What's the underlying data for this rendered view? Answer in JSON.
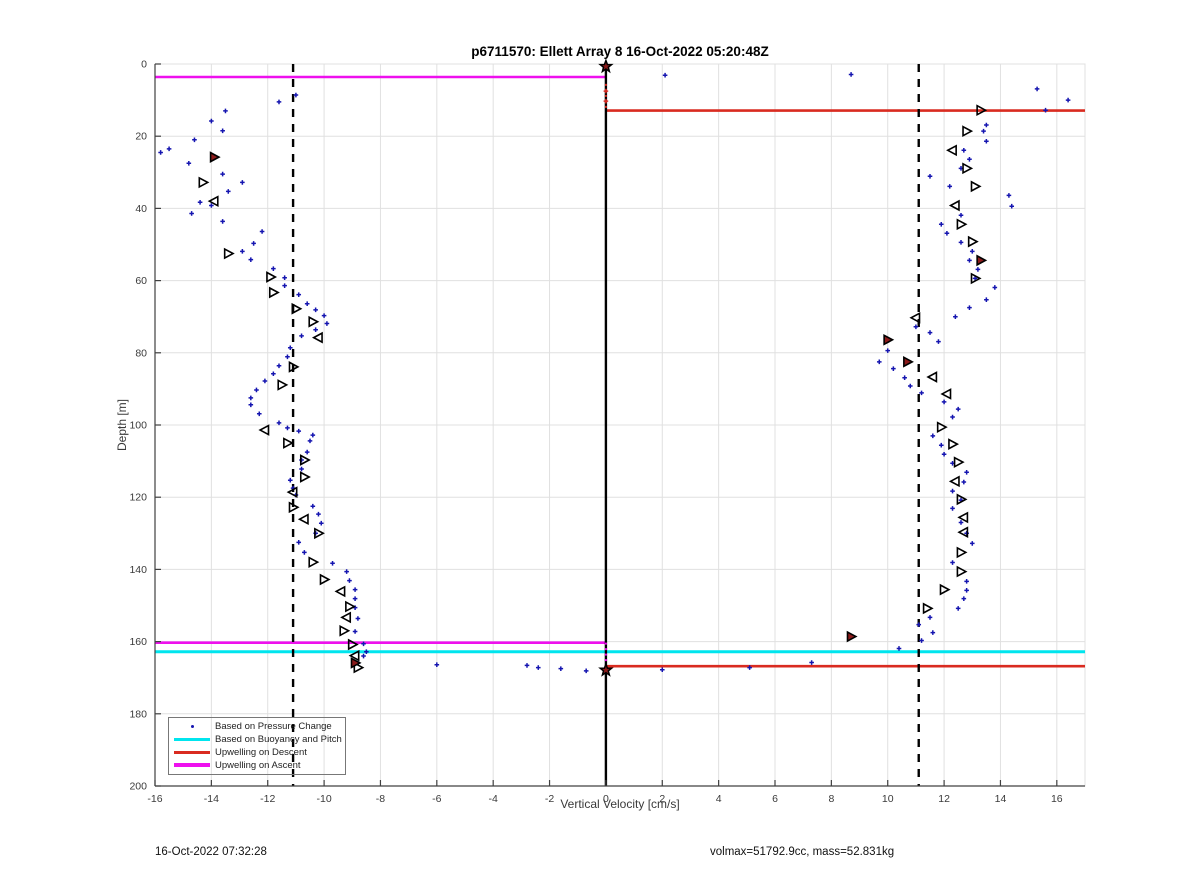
{
  "footer": {
    "left": "16-Oct-2022 07:32:28",
    "right": "volmax=51792.9cc, mass=52.831kg"
  },
  "chart_data": {
    "type": "scatter",
    "title": "p6711570: Ellett Array 8 16-Oct-2022 05:20:48Z",
    "xlabel": "Vertical Velocity [cm/s]",
    "ylabel": "Depth [m]",
    "xlim": [
      -16,
      17
    ],
    "ylim": [
      0,
      200
    ],
    "y_axis_reversed": true,
    "grid": true,
    "legend_position": "southwest",
    "x_ticks": [
      -16,
      -14,
      -12,
      -10,
      -8,
      -6,
      -4,
      -2,
      0,
      2,
      4,
      6,
      8,
      10,
      12,
      14,
      16
    ],
    "y_ticks": [
      0,
      20,
      40,
      60,
      80,
      100,
      120,
      140,
      160,
      180,
      200
    ],
    "colors": {
      "grid": "#e0e0e0",
      "axis": "#404040",
      "dots": "#1515b0",
      "triangle": "#000000",
      "triangle_flagged_fill": "#8b1a1a",
      "cyan": "#00e5ee",
      "red": "#d92b20",
      "magenta": "#ee10ee",
      "zero_line": "#000000",
      "dashed": "#000000"
    },
    "legend": [
      {
        "label": "Based on Pressure Change",
        "marker": "dot",
        "color": "#1515b0"
      },
      {
        "label": "Based on Buoyancy and Pitch",
        "marker": "line",
        "color": "#00e5ee"
      },
      {
        "label": "Upwelling on Descent",
        "marker": "line",
        "color": "#d92b20"
      },
      {
        "label": "Upwelling on Ascent",
        "marker": "line",
        "color": "#ee10ee"
      }
    ],
    "zero_velocity_line": {
      "x": 0
    },
    "dashed_verticals": [
      -11.1,
      11.1
    ],
    "dotted_verticals": [
      {
        "x": 0,
        "y1": 5.5,
        "y2": 12.9,
        "color": "#d92b20"
      },
      {
        "x": 0,
        "y1": 160.3,
        "y2": 166.8,
        "color": "#ee10ee"
      }
    ],
    "lines": [
      {
        "name": "upwelling-ascent-surface",
        "color": "#ee10ee",
        "y": 3.6,
        "x1": -16,
        "x2": 0,
        "width": 2.6
      },
      {
        "name": "upwelling-ascent-deep",
        "color": "#ee10ee",
        "y": 160.3,
        "x1": -16,
        "x2": 0,
        "width": 2.6
      },
      {
        "name": "buoyancy-pitch-line",
        "color": "#00e5ee",
        "y": 162.8,
        "x1": -16,
        "x2": 17,
        "width": 3
      },
      {
        "name": "upwelling-descent-top",
        "color": "#d92b20",
        "y": 12.9,
        "x1": 0,
        "x2": 17,
        "width": 2.6
      },
      {
        "name": "upwelling-descent-deep",
        "color": "#d92b20",
        "y": 166.8,
        "x1": 0,
        "x2": 17,
        "width": 2.6
      }
    ],
    "series": [
      {
        "name": "pressure-change-dots",
        "marker": "plus",
        "color": "#1515b0",
        "points": [
          [
            -11.0,
            8.6
          ],
          [
            -11.6,
            10.5
          ],
          [
            -13.5,
            13.0
          ],
          [
            -14.0,
            15.8
          ],
          [
            -13.6,
            18.5
          ],
          [
            -14.6,
            21.0
          ],
          [
            -15.5,
            23.5
          ],
          [
            -15.8,
            24.5
          ],
          [
            -14.8,
            27.5
          ],
          [
            -13.6,
            30.5
          ],
          [
            -12.9,
            32.8
          ],
          [
            -13.4,
            35.3
          ],
          [
            -14.4,
            38.3
          ],
          [
            -14.0,
            39.2
          ],
          [
            -14.7,
            41.4
          ],
          [
            -13.6,
            43.6
          ],
          [
            -12.2,
            46.4
          ],
          [
            -12.5,
            49.7
          ],
          [
            -12.9,
            51.9
          ],
          [
            -12.6,
            54.2
          ],
          [
            -11.8,
            56.7
          ],
          [
            -11.4,
            59.2
          ],
          [
            -11.4,
            61.4
          ],
          [
            -10.9,
            63.9
          ],
          [
            -10.6,
            66.4
          ],
          [
            -10.3,
            68.1
          ],
          [
            -10.0,
            69.7
          ],
          [
            -9.9,
            71.9
          ],
          [
            -10.3,
            73.6
          ],
          [
            -10.8,
            75.3
          ],
          [
            -11.2,
            78.6
          ],
          [
            -11.3,
            81.1
          ],
          [
            -11.6,
            83.6
          ],
          [
            -11.8,
            85.8
          ],
          [
            -12.1,
            87.8
          ],
          [
            -12.4,
            90.3
          ],
          [
            -12.6,
            92.5
          ],
          [
            -12.6,
            94.4
          ],
          [
            -12.3,
            96.9
          ],
          [
            -11.6,
            99.4
          ],
          [
            -11.3,
            100.8
          ],
          [
            -10.9,
            101.7
          ],
          [
            -10.4,
            102.8
          ],
          [
            -10.5,
            104.4
          ],
          [
            -10.6,
            107.5
          ],
          [
            -10.8,
            109.7
          ],
          [
            -10.8,
            112.2
          ],
          [
            -11.2,
            115.3
          ],
          [
            -11.1,
            117.5
          ],
          [
            -11.0,
            119.4
          ],
          [
            -10.4,
            122.5
          ],
          [
            -10.2,
            124.7
          ],
          [
            -10.1,
            127.2
          ],
          [
            -10.3,
            130.0
          ],
          [
            -10.9,
            132.5
          ],
          [
            -10.7,
            135.3
          ],
          [
            -9.7,
            138.3
          ],
          [
            -9.2,
            140.6
          ],
          [
            -9.1,
            143.1
          ],
          [
            -8.9,
            145.6
          ],
          [
            -8.9,
            148.1
          ],
          [
            -8.9,
            150.6
          ],
          [
            -8.8,
            153.6
          ],
          [
            -8.9,
            157.2
          ],
          [
            -8.6,
            160.6
          ],
          [
            -8.5,
            162.8
          ],
          [
            -8.6,
            164.0
          ],
          [
            -8.8,
            166.0
          ],
          [
            -6.0,
            166.4
          ],
          [
            -2.8,
            166.6
          ],
          [
            -2.4,
            167.2
          ],
          [
            -1.6,
            167.5
          ],
          [
            -0.7,
            168.1
          ],
          [
            2.1,
            3.1
          ],
          [
            8.7,
            2.9
          ],
          [
            15.3,
            6.9
          ],
          [
            16.4,
            10.0
          ],
          [
            15.6,
            12.8
          ],
          [
            13.5,
            16.9
          ],
          [
            13.4,
            18.6
          ],
          [
            13.5,
            21.4
          ],
          [
            12.7,
            23.9
          ],
          [
            12.9,
            26.4
          ],
          [
            12.6,
            28.9
          ],
          [
            11.5,
            31.1
          ],
          [
            12.2,
            33.9
          ],
          [
            14.3,
            36.4
          ],
          [
            14.4,
            39.4
          ],
          [
            12.6,
            41.9
          ],
          [
            11.9,
            44.4
          ],
          [
            12.1,
            46.9
          ],
          [
            12.6,
            49.4
          ],
          [
            13.0,
            51.9
          ],
          [
            12.9,
            54.4
          ],
          [
            13.2,
            56.9
          ],
          [
            13.1,
            59.4
          ],
          [
            13.8,
            61.9
          ],
          [
            13.5,
            65.3
          ],
          [
            12.9,
            67.5
          ],
          [
            12.4,
            70.0
          ],
          [
            11.0,
            72.8
          ],
          [
            11.5,
            74.4
          ],
          [
            11.8,
            76.9
          ],
          [
            10.0,
            79.4
          ],
          [
            9.7,
            82.5
          ],
          [
            10.2,
            84.4
          ],
          [
            10.6,
            86.9
          ],
          [
            10.8,
            89.2
          ],
          [
            11.2,
            91.1
          ],
          [
            12.0,
            93.6
          ],
          [
            12.5,
            95.6
          ],
          [
            12.3,
            97.8
          ],
          [
            11.6,
            103.0
          ],
          [
            11.9,
            105.6
          ],
          [
            12.0,
            108.1
          ],
          [
            12.3,
            110.6
          ],
          [
            12.8,
            113.1
          ],
          [
            12.7,
            115.8
          ],
          [
            12.3,
            118.3
          ],
          [
            12.6,
            120.8
          ],
          [
            12.3,
            123.1
          ],
          [
            12.6,
            127.0
          ],
          [
            12.8,
            130.0
          ],
          [
            13.0,
            132.8
          ],
          [
            12.3,
            138.1
          ],
          [
            12.8,
            143.3
          ],
          [
            12.8,
            145.8
          ],
          [
            12.7,
            148.1
          ],
          [
            12.5,
            150.8
          ],
          [
            11.5,
            153.3
          ],
          [
            11.1,
            155.3
          ],
          [
            11.6,
            157.5
          ],
          [
            11.2,
            159.7
          ],
          [
            10.4,
            161.9
          ],
          [
            7.3,
            165.8
          ],
          [
            5.1,
            167.2
          ],
          [
            2.0,
            167.8
          ]
        ]
      },
      {
        "name": "buoyancy-pitch-triangles",
        "marker": "triangle",
        "color": "#000000",
        "fill": "none",
        "points": [
          [
            -14.3,
            32.8,
            "r"
          ],
          [
            -13.9,
            38.0,
            "l"
          ],
          [
            -13.4,
            52.5,
            "r"
          ],
          [
            -11.9,
            59.0,
            "r"
          ],
          [
            -11.8,
            63.3,
            "r"
          ],
          [
            -11.0,
            67.8,
            "r"
          ],
          [
            -10.4,
            71.4,
            "r"
          ],
          [
            -10.2,
            75.8,
            "l"
          ],
          [
            -11.1,
            83.9,
            "r"
          ],
          [
            -11.5,
            88.9,
            "r"
          ],
          [
            -12.1,
            101.4,
            "l"
          ],
          [
            -11.3,
            105.0,
            "r"
          ],
          [
            -10.7,
            109.7,
            "r"
          ],
          [
            -10.7,
            114.4,
            "r"
          ],
          [
            -11.1,
            118.6,
            "l"
          ],
          [
            -11.1,
            122.8,
            "r"
          ],
          [
            -10.7,
            126.1,
            "l"
          ],
          [
            -10.2,
            130.0,
            "r"
          ],
          [
            -10.4,
            138.0,
            "r"
          ],
          [
            -10.0,
            142.8,
            "r"
          ],
          [
            -9.4,
            146.1,
            "l"
          ],
          [
            -9.1,
            150.3,
            "r"
          ],
          [
            -9.2,
            153.3,
            "l"
          ],
          [
            -9.3,
            157.0,
            "r"
          ],
          [
            -9.0,
            160.8,
            "r"
          ],
          [
            -8.9,
            163.9,
            "l"
          ],
          [
            -8.8,
            167.2,
            "r"
          ],
          [
            13.3,
            12.8,
            "r"
          ],
          [
            12.8,
            18.6,
            "r"
          ],
          [
            12.3,
            23.9,
            "l"
          ],
          [
            12.8,
            28.9,
            "r"
          ],
          [
            13.1,
            33.9,
            "r"
          ],
          [
            12.4,
            39.2,
            "l"
          ],
          [
            12.6,
            44.4,
            "r"
          ],
          [
            13.0,
            49.2,
            "r"
          ],
          [
            13.1,
            59.4,
            "r"
          ],
          [
            11.0,
            70.3,
            "l"
          ],
          [
            11.6,
            86.7,
            "l"
          ],
          [
            12.1,
            91.4,
            "l"
          ],
          [
            11.9,
            100.6,
            "r"
          ],
          [
            12.3,
            105.3,
            "r"
          ],
          [
            12.5,
            110.3,
            "r"
          ],
          [
            12.4,
            115.6,
            "l"
          ],
          [
            12.6,
            120.6,
            "r"
          ],
          [
            12.7,
            125.6,
            "l"
          ],
          [
            12.7,
            129.7,
            "l"
          ],
          [
            12.6,
            135.3,
            "r"
          ],
          [
            12.6,
            140.6,
            "r"
          ],
          [
            12.0,
            145.6,
            "r"
          ],
          [
            11.4,
            150.8,
            "r"
          ]
        ]
      },
      {
        "name": "flagged-triangles",
        "marker": "triangle",
        "color": "#000000",
        "fill": "#8b1a1a",
        "points": [
          [
            -13.9,
            25.8,
            "r"
          ],
          [
            -8.9,
            165.9,
            "r"
          ],
          [
            13.3,
            54.4,
            "r"
          ],
          [
            10.0,
            76.4,
            "r"
          ],
          [
            10.7,
            82.5,
            "r"
          ],
          [
            8.7,
            158.6,
            "r"
          ]
        ]
      },
      {
        "name": "apogee-surface-stars",
        "marker": "star",
        "color": "#000000",
        "fill": "#8b1a1a",
        "points": [
          [
            0,
            0.7
          ],
          [
            0,
            167.9
          ]
        ]
      },
      {
        "name": "zero-line-red-dots",
        "marker": "plus",
        "color": "#d92b20",
        "points": [
          [
            0,
            7.5
          ],
          [
            0,
            10.3
          ]
        ]
      }
    ]
  }
}
